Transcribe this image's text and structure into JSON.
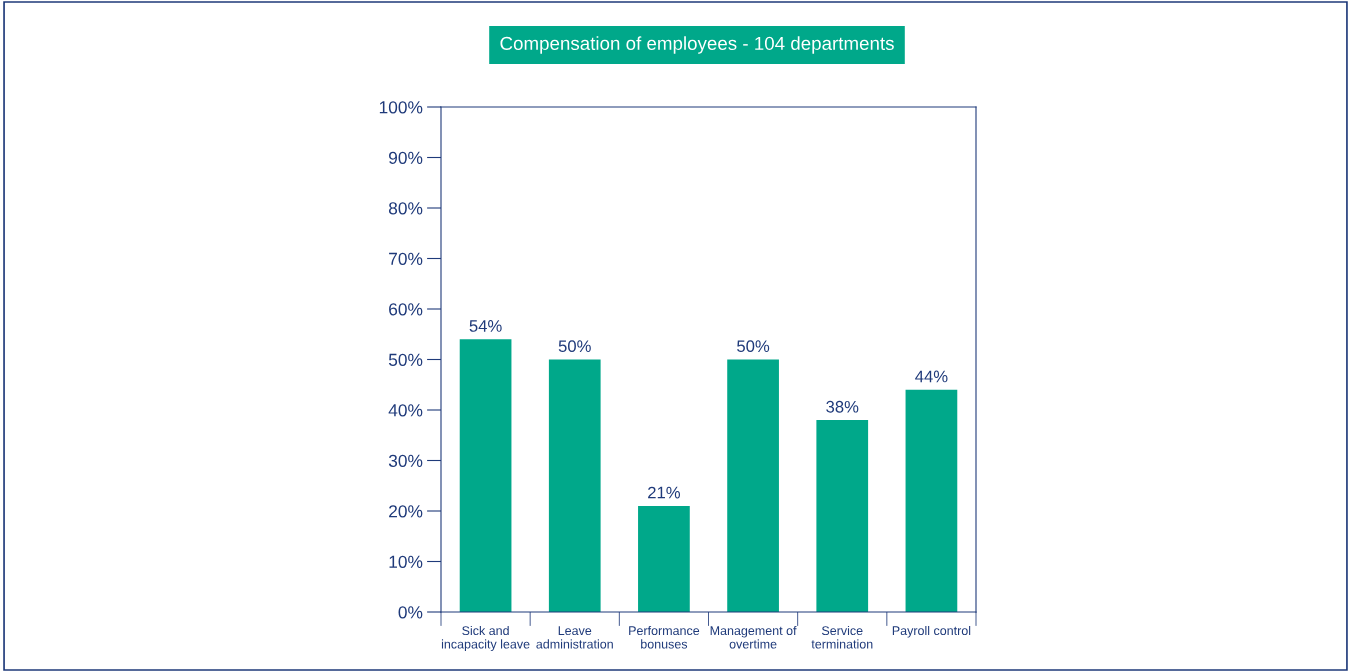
{
  "chart_data": {
    "type": "bar",
    "title": "Compensation of employees - 104 departments",
    "categories": [
      "Sick and\nincapacity leave",
      "Leave\nadministration",
      "Performance\nbonuses",
      "Management of\novertime",
      "Service\ntermination",
      "Payroll control"
    ],
    "values": [
      54,
      50,
      21,
      50,
      38,
      44
    ],
    "value_labels": [
      "54%",
      "50%",
      "21%",
      "50%",
      "38%",
      "44%"
    ],
    "color": "#00a88a",
    "ylim": [
      0,
      100
    ],
    "yticks": [
      {
        "value": 0,
        "label": "0%"
      },
      {
        "value": 10,
        "label": "10%"
      },
      {
        "value": 20,
        "label": "20%"
      },
      {
        "value": 30,
        "label": "30%"
      },
      {
        "value": 40,
        "label": "40%"
      },
      {
        "value": 50,
        "label": "50%"
      },
      {
        "value": 60,
        "label": "60%"
      },
      {
        "value": 70,
        "label": "70%"
      },
      {
        "value": 80,
        "label": "80%"
      },
      {
        "value": 90,
        "label": "90%"
      },
      {
        "value": 100,
        "label": "100%"
      }
    ],
    "grid": false,
    "legend": false
  }
}
